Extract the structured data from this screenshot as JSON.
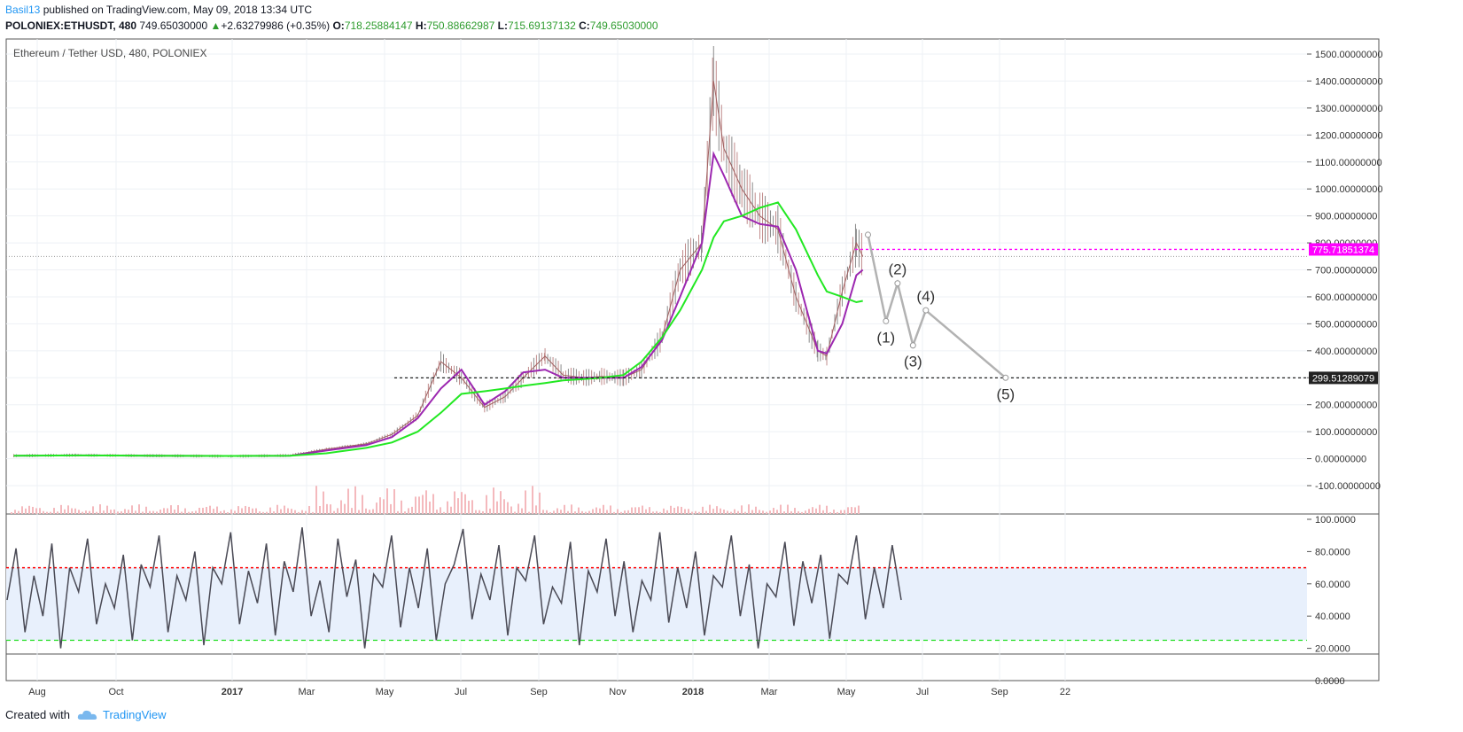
{
  "header": {
    "author": "Basil13",
    "published_text": "published on TradingView.com, May 09, 2018 13:34 UTC",
    "symbol": "POLONIEX:ETHUSDT, 480",
    "last": "749.65030000",
    "arrow": "▲",
    "change": "+2.63279986 (+0.35%)",
    "o_label": "O:",
    "o_value": "718.25884147",
    "h_label": "H:",
    "h_value": "750.88662987",
    "l_label": "L:",
    "l_value": "715.69137132",
    "c_label": "C:",
    "c_value": "749.65030000"
  },
  "footer": {
    "created_with": "Created with",
    "brand": "TradingView"
  },
  "colors": {
    "ma_fast": "#9c27b0",
    "ma_slow": "#22e822",
    "resistance": "#ff00ff",
    "rsi_upper": "#ff0000",
    "rsi_lower": "#22dd22",
    "wave": "#b2b2b2"
  },
  "chart_data": [
    {
      "type": "line",
      "title": "Ethereum / Tether USD, 480, POLONIEX",
      "x_ticks": [
        "Aug",
        "Oct",
        "2017",
        "Mar",
        "May",
        "Jul",
        "Sep",
        "Nov",
        "2018",
        "Mar",
        "May",
        "Jul",
        "Sep",
        "22"
      ],
      "y_ticks": [
        "1500.00000000",
        "1400.00000000",
        "1300.00000000",
        "1200.00000000",
        "1100.00000000",
        "1000.00000000",
        "900.00000000",
        "800.00000000",
        "700.00000000",
        "600.00000000",
        "500.00000000",
        "400.00000000",
        "300.00000000",
        "200.00000000",
        "100.00000000",
        "0.00000000",
        "-100.00000000"
      ],
      "ylim": [
        -100,
        1500
      ],
      "last_price": 749.6503,
      "x": [
        "2016-07-15",
        "2016-09-01",
        "2016-11-01",
        "2017-01-01",
        "2017-02-15",
        "2017-03-15",
        "2017-04-15",
        "2017-05-05",
        "2017-05-25",
        "2017-06-12",
        "2017-06-28",
        "2017-07-16",
        "2017-08-01",
        "2017-08-15",
        "2017-09-01",
        "2017-09-15",
        "2017-10-01",
        "2017-10-15",
        "2017-11-01",
        "2017-11-15",
        "2017-12-01",
        "2017-12-15",
        "2018-01-01",
        "2018-01-10",
        "2018-01-18",
        "2018-02-01",
        "2018-02-15",
        "2018-03-01",
        "2018-03-15",
        "2018-04-01",
        "2018-04-08",
        "2018-04-20",
        "2018-05-01",
        "2018-05-06"
      ],
      "series": [
        {
          "name": "",
          "values": [
            11,
            13,
            11,
            9,
            12,
            35,
            55,
            90,
            160,
            360,
            300,
            190,
            230,
            300,
            380,
            310,
            300,
            305,
            300,
            330,
            450,
            700,
            800,
            1400,
            1150,
            1000,
            900,
            850,
            600,
            400,
            380,
            620,
            800,
            749.65
          ]
        }
      ],
      "moving_averages": [
        {
          "values": [
            11,
            12,
            11,
            10,
            11,
            30,
            50,
            80,
            150,
            260,
            330,
            200,
            250,
            320,
            330,
            300,
            300,
            300,
            300,
            340,
            440,
            600,
            800,
            1130,
            1050,
            900,
            870,
            860,
            700,
            400,
            390,
            500,
            680,
            700
          ]
        },
        {
          "values": [
            11,
            12,
            11,
            10,
            11,
            20,
            40,
            60,
            100,
            170,
            240,
            250,
            260,
            270,
            280,
            290,
            295,
            300,
            310,
            360,
            450,
            550,
            700,
            820,
            880,
            900,
            930,
            950,
            850,
            680,
            620,
            600,
            580,
            585
          ]
        }
      ],
      "horizontal_levels": [
        {
          "value": 775.71851374,
          "label": "775.71851374"
        },
        {
          "value": 299.51289079,
          "label": "299.51289079"
        }
      ],
      "wave_projection": {
        "x": [
          "2018-05-10",
          "2018-05-24",
          "2018-06-02",
          "2018-06-14",
          "2018-06-24",
          "2018-08-25"
        ],
        "values": [
          830,
          510,
          650,
          420,
          550,
          300
        ],
        "labels": [
          "(1)",
          "(2)",
          "(3)",
          "(4)",
          "(5)"
        ]
      }
    },
    {
      "type": "line",
      "y_ticks": [
        "100.0000",
        "80.0000",
        "60.0000",
        "40.0000",
        "20.0000",
        "0.0000"
      ],
      "ylim": [
        0,
        100
      ],
      "upper_band": 70,
      "lower_band": 25,
      "series": [
        {
          "name": "",
          "values": [
            50,
            82,
            30,
            65,
            40,
            85,
            20,
            70,
            55,
            88,
            35,
            60,
            45,
            78,
            25,
            72,
            58,
            90,
            30,
            65,
            50,
            80,
            22,
            70,
            60,
            92,
            35,
            68,
            48,
            85,
            28,
            74,
            55,
            95,
            40,
            62,
            30,
            88,
            52,
            75,
            20,
            66,
            58,
            90,
            33,
            70,
            45,
            82,
            25,
            60,
            72,
            94,
            38,
            66,
            50,
            84,
            28,
            70,
            62,
            90,
            35,
            58,
            48,
            86,
            22,
            68,
            55,
            88,
            40,
            74,
            30,
            62,
            50,
            92,
            36,
            70,
            45,
            80,
            28,
            65,
            58,
            90,
            40,
            72,
            20,
            60,
            52,
            86,
            34,
            74,
            48,
            78,
            26,
            66,
            60,
            90,
            38,
            70,
            45,
            84,
            50
          ]
        }
      ]
    }
  ]
}
